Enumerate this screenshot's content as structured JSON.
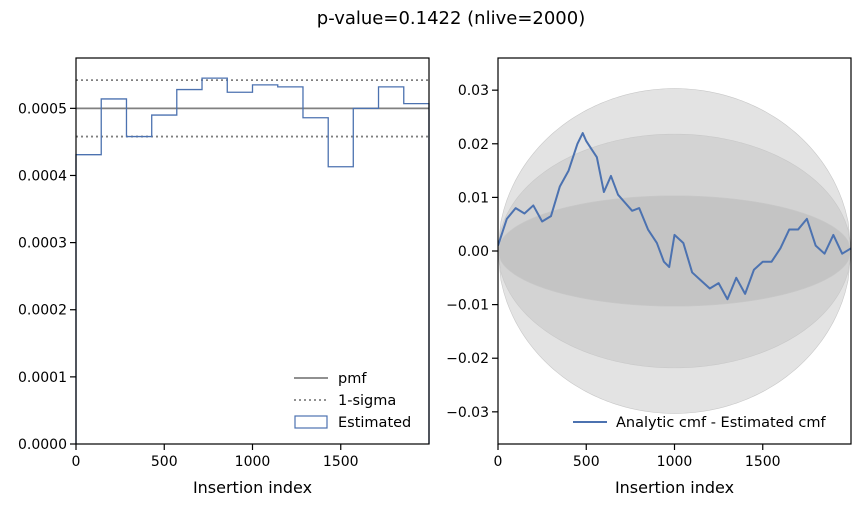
{
  "title": "p-value=0.1422 (nlive=2000)",
  "chart_data": [
    {
      "type": "histogram",
      "xlabel": "Insertion index",
      "ylabel": "",
      "xlim": [
        0,
        2000
      ],
      "ylim": [
        0,
        0.000575
      ],
      "x_ticks": [
        0,
        500,
        1000,
        1500
      ],
      "y_ticks": [
        0.0,
        0.0001,
        0.0002,
        0.0003,
        0.0004,
        0.0005
      ],
      "y_tick_labels": [
        "0.0000",
        "0.0001",
        "0.0002",
        "0.0003",
        "0.0004",
        "0.0005"
      ],
      "bin_edges": [
        0,
        143,
        286,
        429,
        571,
        714,
        857,
        1000,
        1143,
        1286,
        1429,
        1571,
        1714,
        1857,
        2000
      ],
      "values": [
        0.000431,
        0.000514,
        0.000458,
        0.00049,
        0.000528,
        0.000545,
        0.000524,
        0.000535,
        0.000532,
        0.000486,
        0.000413,
        0.0005,
        0.000532,
        0.000507
      ],
      "pmf": 0.0005,
      "sigma_lower": 0.000458,
      "sigma_upper": 0.000542,
      "legend_position": "lower right",
      "legend": [
        {
          "label": "pmf",
          "style": "solid",
          "color": "#808080"
        },
        {
          "label": "1-sigma",
          "style": "dotted",
          "color": "#808080"
        },
        {
          "label": "Estimated",
          "style": "box",
          "color": "#4c72b0"
        }
      ]
    },
    {
      "type": "line",
      "xlabel": "Insertion index",
      "ylabel": "",
      "xlim": [
        0,
        2000
      ],
      "ylim": [
        -0.036,
        0.036
      ],
      "x_ticks": [
        0,
        500,
        1000,
        1500
      ],
      "y_ticks": [
        -0.03,
        -0.02,
        -0.01,
        0.0,
        0.01,
        0.02,
        0.03
      ],
      "y_tick_labels": [
        "−0.03",
        "−0.02",
        "−0.01",
        "0.00",
        "0.01",
        "0.02",
        "0.03"
      ],
      "bands": [
        {
          "name": "outer",
          "amplitude": 0.0303,
          "color": "#e3e3e3"
        },
        {
          "name": "middle",
          "amplitude": 0.0218,
          "color": "#d3d3d3"
        },
        {
          "name": "inner",
          "amplitude": 0.0103,
          "color": "#c4c4c4"
        }
      ],
      "series": [
        {
          "name": "Analytic cmf - Estimated cmf",
          "color": "#4c72b0",
          "x": [
            0,
            50,
            100,
            150,
            200,
            250,
            300,
            350,
            400,
            450,
            480,
            500,
            530,
            560,
            600,
            640,
            680,
            720,
            760,
            800,
            850,
            900,
            940,
            970,
            1000,
            1050,
            1100,
            1150,
            1200,
            1250,
            1300,
            1350,
            1400,
            1450,
            1500,
            1550,
            1600,
            1650,
            1700,
            1750,
            1800,
            1850,
            1900,
            1950,
            2000
          ],
          "y": [
            0.001,
            0.006,
            0.008,
            0.007,
            0.0085,
            0.0055,
            0.0065,
            0.012,
            0.015,
            0.02,
            0.022,
            0.0205,
            0.019,
            0.0175,
            0.011,
            0.014,
            0.0105,
            0.009,
            0.0075,
            0.008,
            0.004,
            0.0015,
            -0.002,
            -0.003,
            0.003,
            0.0015,
            -0.004,
            -0.0055,
            -0.007,
            -0.006,
            -0.009,
            -0.005,
            -0.008,
            -0.0035,
            -0.002,
            -0.002,
            0.0005,
            0.004,
            0.004,
            0.006,
            0.001,
            -0.0005,
            0.003,
            -0.0005,
            0.0005
          ]
        }
      ],
      "legend_position": "lower right"
    }
  ]
}
